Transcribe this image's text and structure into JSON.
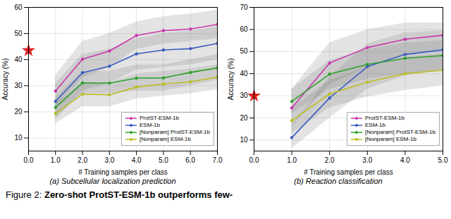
{
  "chart_data": [
    {
      "type": "line",
      "title": "(a) Subcellular localization prediction",
      "xlabel": "# Training samples per class",
      "ylabel": "Accuracy (%)",
      "xlim": [
        0,
        7
      ],
      "ylim": [
        5,
        60
      ],
      "xticks": [
        0,
        1,
        2,
        3,
        4,
        5,
        6,
        7
      ],
      "yticks": [
        10,
        20,
        30,
        40,
        50,
        60
      ],
      "grid": true,
      "legend": "lower right",
      "marker": "o",
      "series": [
        {
          "name": "ProtST-ESM-1b",
          "color": "#c837ab",
          "x": [
            1,
            2,
            3,
            4,
            5,
            6,
            7
          ],
          "values": [
            28.0,
            40.2,
            43.3,
            49.2,
            51.1,
            51.7,
            53.5
          ],
          "y_lo": [
            22.0,
            33.0,
            37.0,
            44.0,
            46.0,
            47.0,
            48.0
          ],
          "y_hi": [
            34.0,
            47.0,
            50.0,
            54.5,
            56.5,
            57.5,
            59.0
          ]
        },
        {
          "name": "ESM-1b",
          "color": "#3b5cc2",
          "x": [
            1,
            2,
            3,
            4,
            5,
            6,
            7
          ],
          "values": [
            24.0,
            35.0,
            37.5,
            42.2,
            43.7,
            44.2,
            46.2
          ],
          "y_lo": [
            17.0,
            28.0,
            31.0,
            36.0,
            37.0,
            38.0,
            40.0
          ],
          "y_hi": [
            31.0,
            42.0,
            44.0,
            48.0,
            50.0,
            51.0,
            52.5
          ]
        },
        {
          "name": "[Nonparam] ProtST-ESM-1b",
          "color": "#2ca02c",
          "x": [
            1,
            2,
            3,
            4,
            5,
            6,
            7
          ],
          "values": [
            21.7,
            31.1,
            31.0,
            32.9,
            33.0,
            35.1,
            36.8
          ],
          "y_lo": [
            18.0,
            27.0,
            27.0,
            28.0,
            28.0,
            30.0,
            32.0
          ],
          "y_hi": [
            25.5,
            35.5,
            35.5,
            38.0,
            38.0,
            40.0,
            42.0
          ]
        },
        {
          "name": "[Nonparam] ESM-1b",
          "color": "#bcbd22",
          "x": [
            1,
            2,
            3,
            4,
            5,
            6,
            7
          ],
          "values": [
            19.4,
            26.8,
            26.5,
            29.5,
            30.7,
            31.5,
            33.3
          ],
          "y_lo": [
            15.5,
            22.0,
            22.0,
            25.0,
            26.0,
            27.0,
            28.5
          ],
          "y_hi": [
            23.5,
            31.0,
            31.0,
            34.5,
            35.5,
            36.5,
            38.0
          ]
        }
      ],
      "points": [
        {
          "x": 0,
          "y": 43.5,
          "color": "#e02020",
          "marker": "star"
        }
      ]
    },
    {
      "type": "line",
      "title": "(b) Reaction classification",
      "xlabel": "# Training samples per class",
      "ylabel": "Accuracy (%)",
      "xlim": [
        0,
        5
      ],
      "ylim": [
        5,
        70
      ],
      "xticks": [
        0,
        1,
        2,
        3,
        4,
        5
      ],
      "yticks": [
        10,
        20,
        30,
        40,
        50,
        60,
        70
      ],
      "grid": true,
      "legend": "lower right",
      "marker": "o",
      "series": [
        {
          "name": "ProtST-ESM-1b",
          "color": "#c837ab",
          "x": [
            1,
            2,
            3,
            4,
            5
          ],
          "values": [
            24.5,
            44.8,
            51.8,
            55.6,
            57.4
          ],
          "y_lo": [
            16.0,
            35.0,
            43.0,
            48.0,
            51.0
          ],
          "y_hi": [
            33.0,
            54.0,
            60.0,
            63.0,
            63.0
          ]
        },
        {
          "name": "ESM-1b",
          "color": "#3b5cc2",
          "x": [
            1,
            2,
            3,
            4,
            5
          ],
          "values": [
            11.1,
            29.0,
            43.2,
            48.7,
            50.8
          ],
          "y_lo": [
            6.0,
            20.0,
            33.0,
            39.0,
            42.0
          ],
          "y_hi": [
            16.5,
            38.5,
            53.5,
            58.5,
            59.5
          ]
        },
        {
          "name": "[Nonparam] ProtST-ESM-1b",
          "color": "#2ca02c",
          "x": [
            1,
            2,
            3,
            4,
            5
          ],
          "values": [
            27.5,
            39.8,
            44.2,
            47.0,
            48.2
          ],
          "y_lo": [
            22.0,
            33.0,
            37.5,
            40.0,
            41.5
          ],
          "y_hi": [
            33.0,
            46.0,
            51.0,
            54.0,
            55.0
          ]
        },
        {
          "name": "[Nonparam] ESM-1b",
          "color": "#bcbd22",
          "x": [
            1,
            2,
            3,
            4,
            5
          ],
          "values": [
            18.8,
            30.8,
            36.2,
            40.0,
            41.6
          ],
          "y_lo": [
            13.0,
            24.5,
            29.5,
            32.5,
            34.5
          ],
          "y_hi": [
            24.5,
            37.0,
            43.0,
            47.5,
            49.0
          ]
        }
      ],
      "points": [
        {
          "x": 0,
          "y": 30.0,
          "color": "#e02020",
          "marker": "star"
        }
      ]
    }
  ],
  "annotations": [
    "Figure 2:",
    "Zero-shot ProtST-ESM-1b outperforms few-"
  ]
}
